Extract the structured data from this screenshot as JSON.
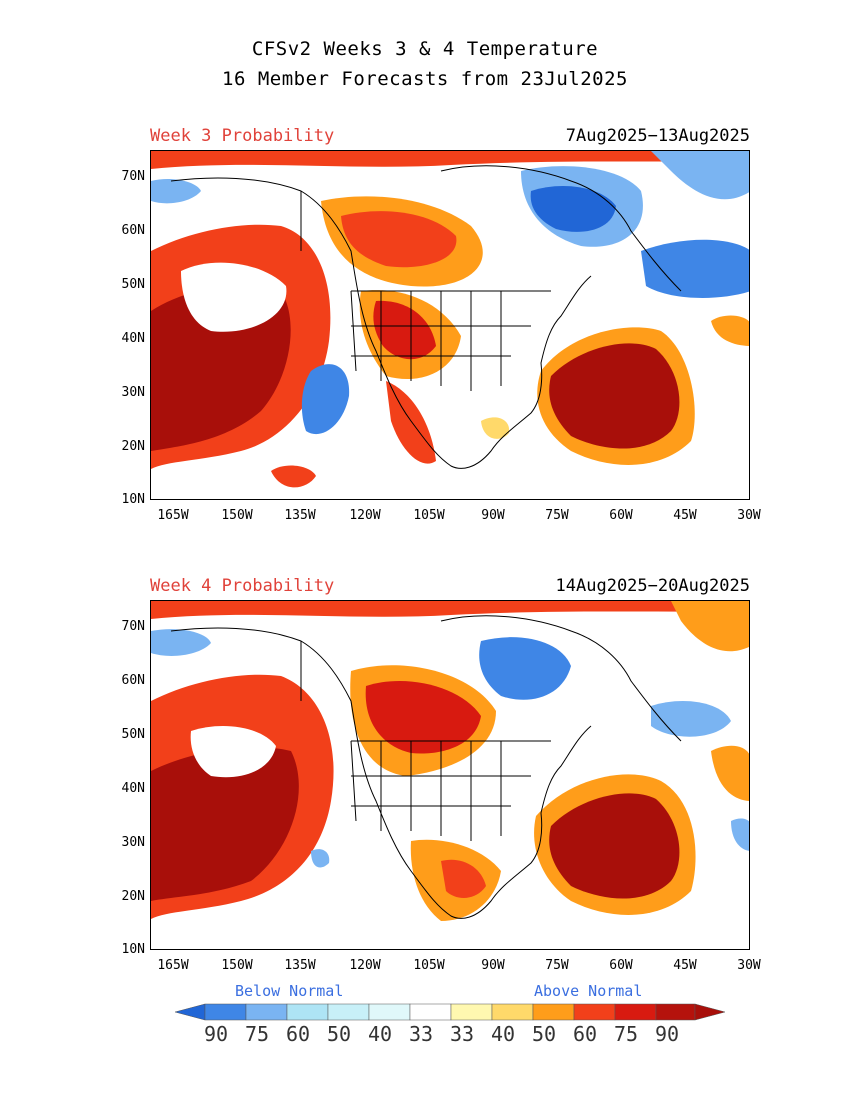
{
  "title_line1": "CFSv2 Weeks 3 & 4 Temperature",
  "title_line2": "16 Member Forecasts from 23Jul2025",
  "panels": [
    {
      "label": "Week 3 Probability",
      "dates": "7Aug2025−13Aug2025"
    },
    {
      "label": "Week 4 Probability",
      "dates": "14Aug2025−20Aug2025"
    }
  ],
  "lat_labels": [
    "70N",
    "60N",
    "50N",
    "40N",
    "30N",
    "20N",
    "10N"
  ],
  "lon_labels": [
    "165W",
    "150W",
    "135W",
    "120W",
    "105W",
    "90W",
    "75W",
    "60W",
    "45W",
    "30W"
  ],
  "legend": {
    "below_label": "Below Normal",
    "above_label": "Above Normal",
    "numbers": [
      "90",
      "75",
      "60",
      "50",
      "40",
      "33",
      "33",
      "40",
      "50",
      "60",
      "75",
      "90"
    ],
    "colors": [
      "#2166d6",
      "#3f86e6",
      "#7ab4f2",
      "#aee4f5",
      "#e0f8fa",
      "#ffffff",
      "#ffffff",
      "#fff8b0",
      "#ffd96a",
      "#ff9d1a",
      "#f2401a",
      "#d81a10",
      "#a80f0a"
    ]
  }
}
